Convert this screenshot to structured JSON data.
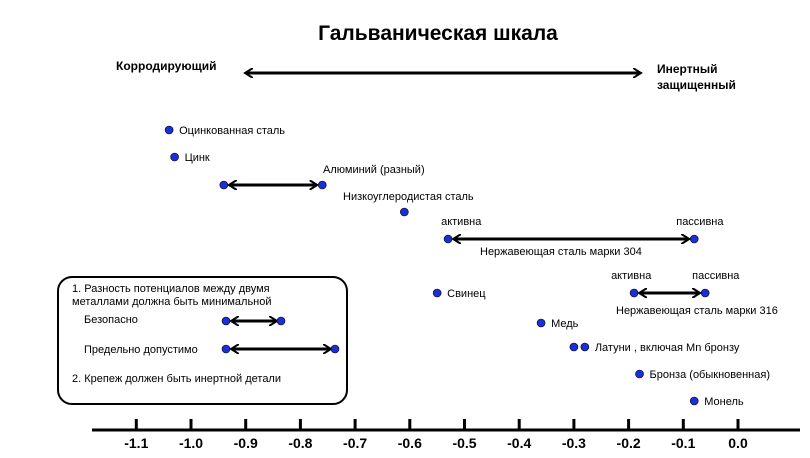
{
  "chart_data": {
    "type": "scatter",
    "title": "Гальваническая шкала",
    "left_label": "Корродирующий",
    "right_label_line1": "Инертный",
    "right_label_line2": "защищенный",
    "x_ticks": [
      "-1.1",
      "-1.0",
      "-0.9",
      "-0.8",
      "-0.7",
      "-0.6",
      "-0.5",
      "-0.4",
      "-0.3",
      "-0.2",
      "-0.1",
      "0.0"
    ],
    "xlim": [
      -1.2,
      0.1
    ],
    "point_color": "#1a2fd6",
    "items": [
      {
        "name": "Оцинкованная сталь",
        "x": [
          -1.04
        ]
      },
      {
        "name": "Цинк",
        "x": [
          -1.03
        ]
      },
      {
        "name": "Алюминий (разный)",
        "x": [
          -0.94,
          -0.76
        ],
        "range": true
      },
      {
        "name": "Низкоуглеродистая сталь",
        "x": [
          -0.61
        ]
      },
      {
        "name": "Нержавеющая сталь марки 304",
        "x": [
          -0.53,
          -0.08
        ],
        "range": true,
        "start_label": "активна",
        "end_label": "пассивна"
      },
      {
        "name": "Свинец",
        "x": [
          -0.55
        ]
      },
      {
        "name": "Нержавеющая сталь марки 316",
        "x": [
          -0.19,
          -0.06
        ],
        "range": true,
        "start_label": "активна",
        "end_label": "пассивна"
      },
      {
        "name": "Медь",
        "x": [
          -0.36
        ]
      },
      {
        "name": "Латуни , включая Mn бронзу",
        "x": [
          -0.3,
          -0.28
        ]
      },
      {
        "name": "Бронза (обыкновенная)",
        "x": [
          -0.18
        ]
      },
      {
        "name": "Монель",
        "x": [
          -0.08
        ]
      }
    ]
  },
  "notes": {
    "rule1_line1": "1. Разность потенциалов между двумя",
    "rule1_line2": "металлами должна быть минимальной",
    "safe_label": "Безопасно",
    "limit_label": "Предельно допустимо",
    "rule2": "2. Крепеж должен быть инертной детали"
  }
}
